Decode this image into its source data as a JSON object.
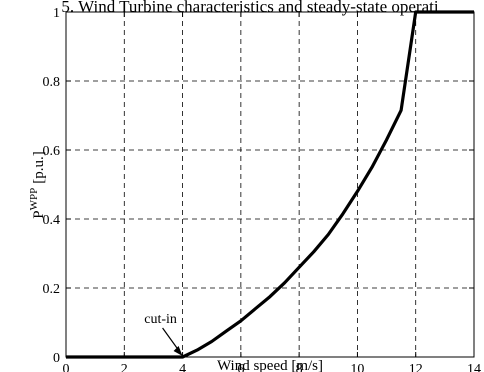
{
  "chart_data": {
    "type": "line",
    "title": "5. Wind Turbine characteristics and steady-state operati",
    "xlabel": "Wind speed [m/s]",
    "ylabel_main": "P",
    "ylabel_sup": "WPP",
    "ylabel_unit": "[p.u.]",
    "xlim": [
      0,
      14
    ],
    "ylim": [
      0,
      1
    ],
    "xticks": [
      0,
      2,
      4,
      6,
      8,
      10,
      12,
      14
    ],
    "xtick_labels": [
      "0",
      "2",
      "4",
      "6",
      "8",
      "10",
      "12",
      "14"
    ],
    "yticks": [
      0,
      0.2,
      0.4,
      0.6,
      0.8,
      1
    ],
    "ytick_labels": [
      "0",
      "0.2",
      "0.4",
      "0.6",
      "0.8",
      "1"
    ],
    "grid": true,
    "series": [
      {
        "x": [
          0,
          4,
          4.5,
          5,
          5.5,
          6,
          6.5,
          7,
          7.5,
          8,
          8.5,
          9,
          9.5,
          10,
          10.5,
          11,
          11.5,
          12,
          14
        ],
        "y": [
          0,
          0,
          0.02,
          0.045,
          0.075,
          0.105,
          0.14,
          0.175,
          0.215,
          0.26,
          0.305,
          0.355,
          0.415,
          0.48,
          0.55,
          0.63,
          0.715,
          1,
          1
        ],
        "color": "#000000"
      }
    ],
    "annotations": [
      {
        "text": "cut-in",
        "x": 4,
        "y": 0
      }
    ]
  }
}
